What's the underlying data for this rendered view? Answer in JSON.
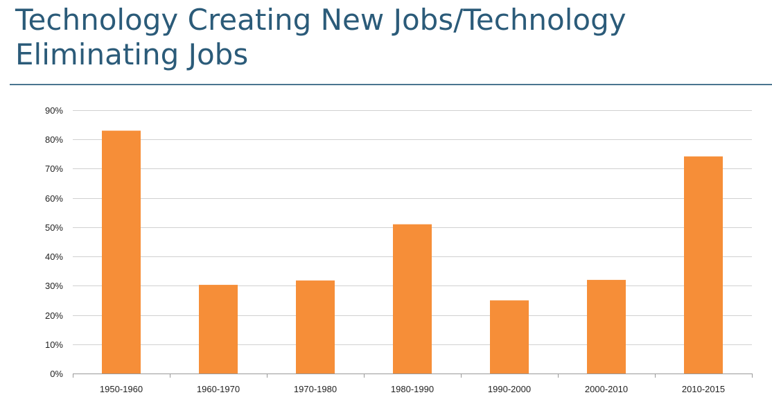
{
  "title": "Technology Creating New Jobs/Technology Eliminating Jobs",
  "colors": {
    "title": "#2b5b79",
    "bar": "#f68e38",
    "grid": "#d0d0d0",
    "rule": "#4a7590"
  },
  "chart_data": {
    "type": "bar",
    "title": "",
    "xlabel": "",
    "ylabel": "",
    "categories": [
      "1950-1960",
      "1960-1970",
      "1970-1980",
      "1980-1990",
      "1990-2000",
      "2000-2010",
      "2010-2015"
    ],
    "values": [
      83,
      30.3,
      31.8,
      51,
      25,
      32,
      74.2
    ],
    "ylim": [
      0,
      90
    ],
    "yticks": [
      0,
      10,
      20,
      30,
      40,
      50,
      60,
      70,
      80,
      90
    ],
    "ytick_labels": [
      "0%",
      "10%",
      "20%",
      "30%",
      "40%",
      "50%",
      "60%",
      "70%",
      "80%",
      "90%"
    ],
    "grid": true,
    "legend": "none"
  }
}
